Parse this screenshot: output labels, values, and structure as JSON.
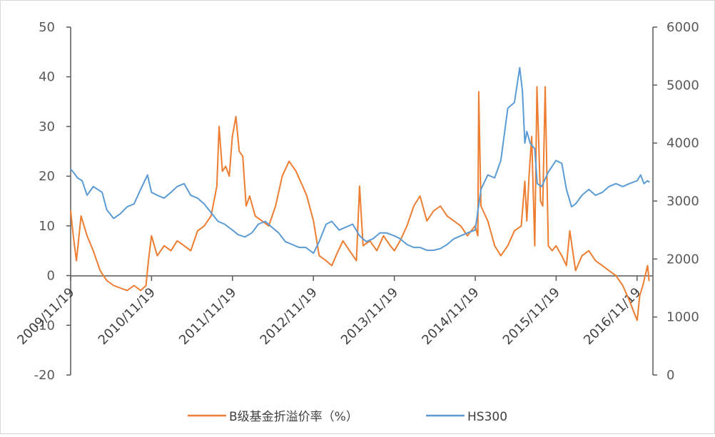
{
  "chart_data": {
    "type": "line",
    "title": "",
    "xlabel": "",
    "ylabel_left": "",
    "ylabel_right": "",
    "x_ticks": [
      "2009/11/19",
      "2010/11/19",
      "2011/11/19",
      "2012/11/19",
      "2013/11/19",
      "2014/11/19",
      "2015/11/19",
      "2016/11/19"
    ],
    "y_left": {
      "range": [
        -20,
        50
      ],
      "ticks": [
        "50",
        "40",
        "30",
        "20",
        "10",
        "0",
        "-10",
        "-20"
      ]
    },
    "y_right": {
      "range": [
        0,
        6000
      ],
      "ticks": [
        "6000",
        "5000",
        "4000",
        "3000",
        "2000",
        "1000",
        "0"
      ]
    },
    "grid": false,
    "legend_position": "bottom",
    "legend": [
      "B级基金折溢价率（%）",
      "HS300"
    ],
    "colors": {
      "discount_premium": "#ED7D31",
      "hs300": "#5B9BD5"
    },
    "series": [
      {
        "name": "B级基金折溢价率（%）",
        "axis": "left",
        "color": "#ED7D31",
        "x": [
          "2009-11-19",
          "2009-12-01",
          "2009-12-15",
          "2010-01-05",
          "2010-02-01",
          "2010-03-01",
          "2010-04-01",
          "2010-05-01",
          "2010-06-01",
          "2010-07-01",
          "2010-08-01",
          "2010-09-01",
          "2010-10-01",
          "2010-10-25",
          "2010-11-05",
          "2010-11-19",
          "2010-12-15",
          "2011-01-15",
          "2011-02-15",
          "2011-03-15",
          "2011-04-15",
          "2011-05-15",
          "2011-06-15",
          "2011-07-15",
          "2011-08-15",
          "2011-09-10",
          "2011-09-20",
          "2011-10-05",
          "2011-10-20",
          "2011-11-05",
          "2011-11-19",
          "2011-12-05",
          "2011-12-20",
          "2012-01-05",
          "2012-01-20",
          "2012-02-05",
          "2012-03-01",
          "2012-04-01",
          "2012-05-01",
          "2012-06-01",
          "2012-07-01",
          "2012-08-01",
          "2012-09-01",
          "2012-10-01",
          "2012-10-20",
          "2012-11-19",
          "2012-12-15",
          "2013-01-15",
          "2013-02-10",
          "2013-03-01",
          "2013-04-01",
          "2013-05-01",
          "2013-06-01",
          "2013-06-15",
          "2013-07-01",
          "2013-08-01",
          "2013-09-01",
          "2013-10-01",
          "2013-11-01",
          "2013-11-19",
          "2013-12-15",
          "2014-01-15",
          "2014-02-15",
          "2014-03-15",
          "2014-04-15",
          "2014-05-15",
          "2014-06-15",
          "2014-07-15",
          "2014-08-15",
          "2014-09-15",
          "2014-10-15",
          "2014-11-01",
          "2014-11-19",
          "2014-12-01",
          "2014-12-05",
          "2014-12-15",
          "2015-01-15",
          "2015-02-15",
          "2015-03-15",
          "2015-04-15",
          "2015-05-15",
          "2015-06-15",
          "2015-07-01",
          "2015-07-10",
          "2015-07-20",
          "2015-08-01",
          "2015-08-15",
          "2015-08-25",
          "2015-09-10",
          "2015-09-20",
          "2015-10-01",
          "2015-10-15",
          "2015-11-01",
          "2015-11-19",
          "2015-12-15",
          "2016-01-05",
          "2016-01-20",
          "2016-02-15",
          "2016-03-15",
          "2016-04-15",
          "2016-05-15",
          "2016-06-15",
          "2016-07-15",
          "2016-08-15",
          "2016-09-15",
          "2016-10-15",
          "2016-11-01",
          "2016-11-19",
          "2016-12-01",
          "2016-12-15",
          "2016-12-25",
          "2017-01-05",
          "2017-01-12"
        ],
        "values": [
          13,
          8,
          3,
          12,
          8,
          5,
          1,
          -1,
          -2,
          -2.5,
          -3,
          -2,
          -3,
          -2,
          3,
          8,
          4,
          6,
          5,
          7,
          6,
          5,
          9,
          10,
          12,
          18,
          30,
          21,
          22,
          20,
          28,
          32,
          25,
          24,
          14,
          16,
          12,
          11,
          10,
          14,
          20,
          23,
          21,
          18,
          16,
          11,
          4,
          3,
          2,
          4,
          7,
          5,
          3,
          18,
          6,
          7,
          5,
          8,
          6,
          5,
          7,
          10,
          14,
          16,
          11,
          13,
          14,
          12,
          11,
          10,
          8,
          9,
          10,
          8,
          37,
          14,
          11,
          6,
          4,
          6,
          9,
          10,
          19,
          11,
          20,
          28,
          6,
          38,
          15,
          14,
          38,
          6,
          5,
          6,
          4,
          2,
          9,
          1,
          4,
          5,
          3,
          2,
          1,
          0,
          -2,
          -5,
          -7,
          -9,
          -4,
          -2,
          0,
          2,
          -1
        ]
      },
      {
        "name": "HS300",
        "axis": "right",
        "color": "#5B9BD5",
        "x": [
          "2009-11-19",
          "2009-12-01",
          "2009-12-20",
          "2010-01-10",
          "2010-02-01",
          "2010-03-01",
          "2010-04-10",
          "2010-05-01",
          "2010-06-01",
          "2010-07-01",
          "2010-08-01",
          "2010-09-01",
          "2010-10-01",
          "2010-11-01",
          "2010-11-19",
          "2010-12-15",
          "2011-01-15",
          "2011-02-15",
          "2011-03-15",
          "2011-04-15",
          "2011-05-15",
          "2011-06-15",
          "2011-07-15",
          "2011-08-15",
          "2011-09-15",
          "2011-10-15",
          "2011-11-19",
          "2011-12-15",
          "2012-01-15",
          "2012-02-15",
          "2012-03-15",
          "2012-04-15",
          "2012-05-15",
          "2012-06-15",
          "2012-07-15",
          "2012-08-15",
          "2012-09-15",
          "2012-10-15",
          "2012-11-19",
          "2012-12-15",
          "2013-01-15",
          "2013-02-10",
          "2013-03-15",
          "2013-04-15",
          "2013-05-15",
          "2013-06-15",
          "2013-07-15",
          "2013-08-15",
          "2013-09-15",
          "2013-10-15",
          "2013-11-19",
          "2013-12-15",
          "2014-01-15",
          "2014-02-15",
          "2014-03-15",
          "2014-04-15",
          "2014-05-15",
          "2014-06-15",
          "2014-07-15",
          "2014-08-15",
          "2014-09-15",
          "2014-10-15",
          "2014-11-19",
          "2014-12-15",
          "2015-01-15",
          "2015-02-15",
          "2015-03-15",
          "2015-04-15",
          "2015-05-15",
          "2015-06-08",
          "2015-06-20",
          "2015-07-01",
          "2015-07-10",
          "2015-07-25",
          "2015-08-15",
          "2015-08-26",
          "2015-09-15",
          "2015-10-15",
          "2015-11-19",
          "2015-12-15",
          "2016-01-05",
          "2016-01-28",
          "2016-02-15",
          "2016-03-15",
          "2016-04-15",
          "2016-05-15",
          "2016-06-15",
          "2016-07-15",
          "2016-08-15",
          "2016-09-15",
          "2016-10-15",
          "2016-11-19",
          "2016-12-05",
          "2016-12-20",
          "2017-01-05",
          "2017-01-12"
        ],
        "values": [
          3550,
          3500,
          3400,
          3350,
          3100,
          3250,
          3150,
          2850,
          2700,
          2780,
          2900,
          2950,
          3200,
          3450,
          3150,
          3100,
          3050,
          3150,
          3250,
          3300,
          3100,
          3050,
          2950,
          2800,
          2650,
          2600,
          2500,
          2420,
          2380,
          2450,
          2600,
          2650,
          2550,
          2450,
          2300,
          2250,
          2200,
          2200,
          2100,
          2300,
          2600,
          2650,
          2500,
          2550,
          2600,
          2400,
          2300,
          2350,
          2450,
          2450,
          2400,
          2350,
          2250,
          2200,
          2200,
          2150,
          2150,
          2180,
          2250,
          2350,
          2400,
          2450,
          2500,
          3200,
          3450,
          3400,
          3700,
          4600,
          4700,
          5300,
          4900,
          4000,
          4200,
          4000,
          3900,
          3300,
          3250,
          3500,
          3700,
          3650,
          3200,
          2900,
          2950,
          3100,
          3200,
          3100,
          3150,
          3250,
          3300,
          3250,
          3300,
          3350,
          3450,
          3300,
          3350,
          3330
        ]
      }
    ]
  }
}
